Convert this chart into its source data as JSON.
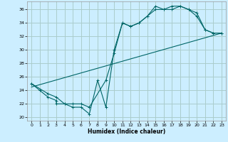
{
  "title": "",
  "xlabel": "Humidex (Indice chaleur)",
  "bg_color": "#cceeff",
  "line_color": "#006666",
  "grid_color": "#aacccc",
  "xlim": [
    -0.5,
    23.5
  ],
  "ylim": [
    19.5,
    37.2
  ],
  "xticks": [
    0,
    1,
    2,
    3,
    4,
    5,
    6,
    7,
    8,
    9,
    10,
    11,
    12,
    13,
    14,
    15,
    16,
    17,
    18,
    19,
    20,
    21,
    22,
    23
  ],
  "yticks": [
    20,
    22,
    24,
    26,
    28,
    30,
    32,
    34,
    36
  ],
  "line1_x": [
    0,
    1,
    2,
    3,
    3,
    4,
    5,
    6,
    7,
    8,
    9,
    10,
    11,
    12,
    13,
    14,
    15,
    16,
    17,
    18,
    19,
    20,
    21,
    22,
    23
  ],
  "line1_y": [
    25,
    24,
    23,
    22.5,
    22,
    22,
    21.5,
    21.5,
    20.5,
    25.5,
    21.5,
    30,
    34,
    33.5,
    34,
    35,
    36.5,
    36,
    36.5,
    36.5,
    36,
    35,
    33,
    32.5,
    32.5
  ],
  "line2_x": [
    0,
    2,
    3,
    4,
    5,
    6,
    7,
    9,
    10,
    11,
    12,
    13,
    14,
    15,
    16,
    17,
    18,
    19,
    20,
    21,
    22,
    23
  ],
  "line2_y": [
    25,
    23.5,
    23,
    22,
    22,
    22,
    21.5,
    25.5,
    29.5,
    34,
    33.5,
    34,
    35,
    36,
    36,
    36,
    36.5,
    36,
    35.5,
    33,
    32.5,
    32.5
  ],
  "line3_x": [
    0,
    23
  ],
  "line3_y": [
    24.5,
    32.5
  ]
}
